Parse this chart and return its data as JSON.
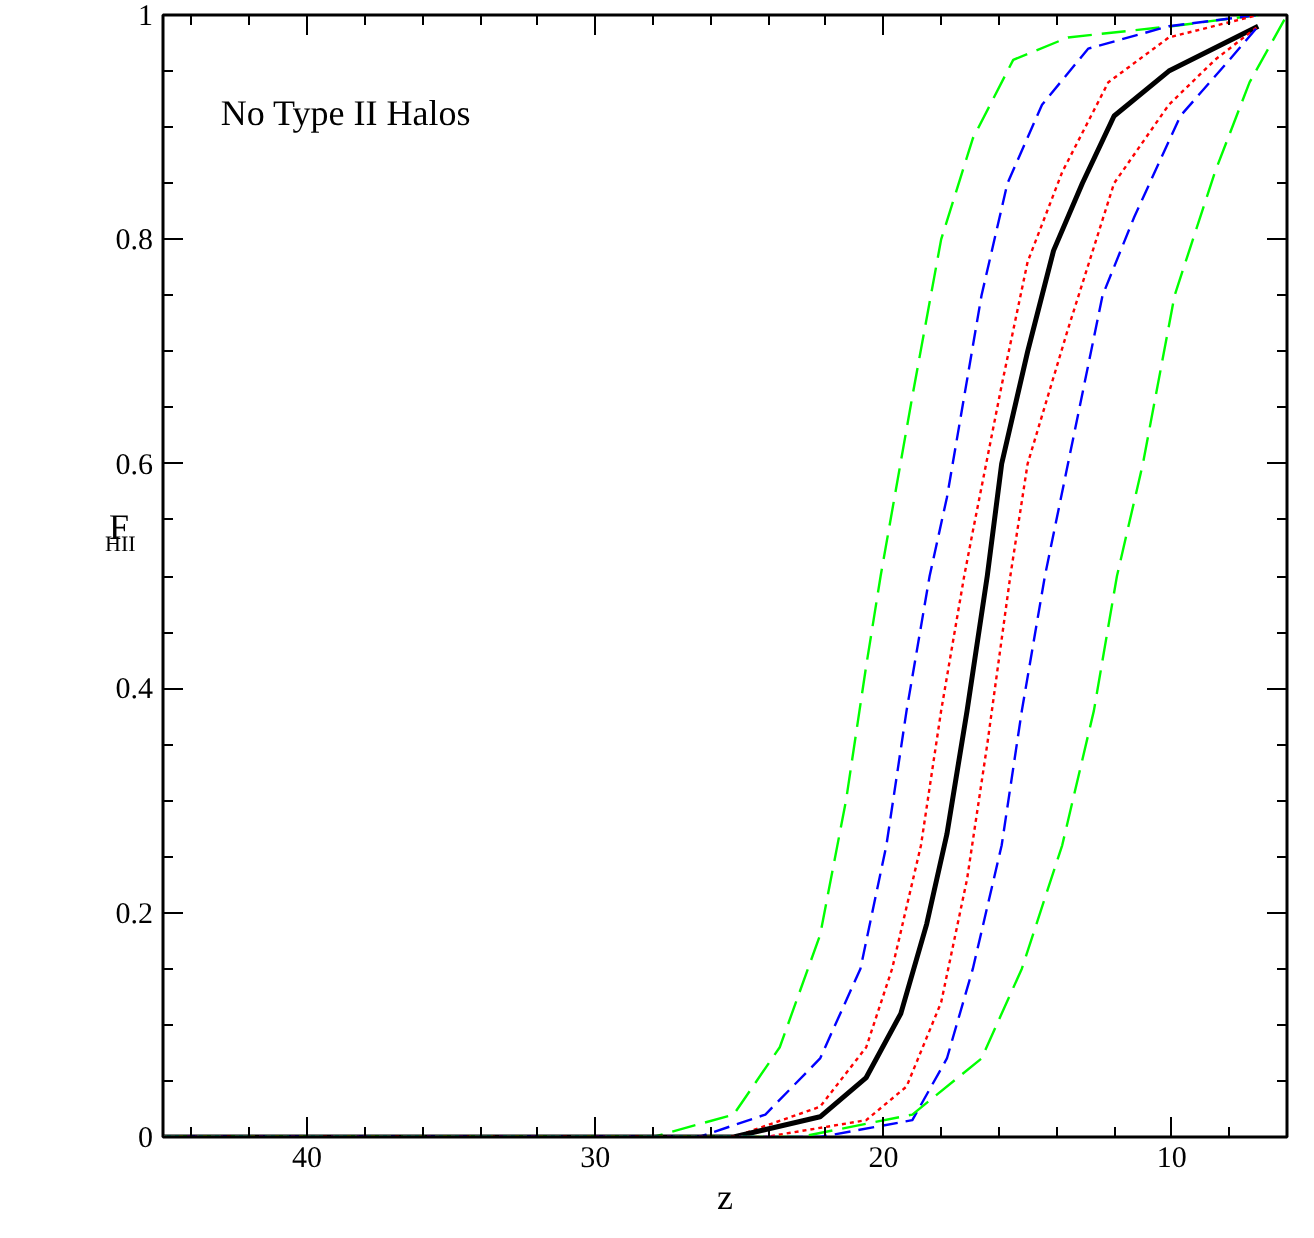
{
  "chart_data": {
    "type": "line",
    "xlabel": "z",
    "ylabel": "F$_{HII}$",
    "annotations": [
      "No Type II Halos"
    ],
    "xlim": [
      45,
      6
    ],
    "ylim": [
      0,
      1
    ],
    "xticks": [
      10,
      20,
      30,
      40
    ],
    "yticks": [
      0,
      0.2,
      0.4,
      0.6,
      0.8,
      1
    ],
    "marker": "none",
    "series": [
      {
        "color": "#00ff00",
        "line_style": "dashed",
        "x": [
          45,
          28.0,
          25.2,
          23.6,
          22.2,
          21.3,
          20.6,
          20.1,
          19.0,
          18.0,
          16.9,
          15.5,
          13.6,
          10.0,
          7.0
        ],
        "values": [
          0,
          0,
          0.02,
          0.08,
          0.18,
          0.3,
          0.42,
          0.5,
          0.66,
          0.8,
          0.89,
          0.96,
          0.98,
          0.99,
          1.0
        ]
      },
      {
        "color": "#0000ff",
        "line_style": "dashed",
        "x": [
          45,
          26.4,
          24.1,
          22.2,
          20.8,
          19.9,
          19.2,
          18.4,
          17.8,
          16.6,
          15.7,
          14.5,
          12.9,
          10.1,
          7.0
        ],
        "values": [
          0,
          0,
          0.02,
          0.07,
          0.15,
          0.26,
          0.38,
          0.5,
          0.57,
          0.75,
          0.85,
          0.92,
          0.97,
          0.99,
          1.0
        ]
      },
      {
        "color": "#ff0000",
        "line_style": "dotted",
        "x": [
          45,
          25.2,
          22.2,
          20.6,
          19.7,
          18.7,
          18.0,
          17.2,
          16.9,
          15.9,
          15.0,
          13.8,
          12.2,
          10.1,
          7.0
        ],
        "values": [
          0,
          0,
          0.027,
          0.08,
          0.15,
          0.26,
          0.38,
          0.5,
          0.54,
          0.67,
          0.78,
          0.86,
          0.94,
          0.98,
          1.0
        ]
      },
      {
        "color": "#000000",
        "line_style": "solid",
        "x": [
          45,
          25.2,
          22.2,
          20.6,
          19.4,
          18.5,
          17.8,
          17.1,
          16.4,
          15.9,
          15.0,
          14.1,
          13.1,
          12.0,
          10.1,
          7.0
        ],
        "values": [
          0,
          0,
          0.018,
          0.053,
          0.11,
          0.19,
          0.27,
          0.38,
          0.5,
          0.6,
          0.7,
          0.79,
          0.85,
          0.91,
          0.95,
          0.99
        ]
      },
      {
        "color": "#ff0000",
        "line_style": "dotted",
        "x": [
          45,
          24.1,
          20.6,
          19.2,
          18.0,
          17.1,
          16.4,
          15.6,
          15.0,
          13.6,
          12.0,
          10.1,
          8.5,
          7.0
        ],
        "values": [
          0,
          0,
          0.015,
          0.045,
          0.12,
          0.23,
          0.35,
          0.5,
          0.6,
          0.72,
          0.85,
          0.92,
          0.96,
          0.99
        ]
      },
      {
        "color": "#0000ff",
        "line_style": "dashed",
        "x": [
          45,
          22.2,
          19.0,
          17.8,
          16.9,
          15.9,
          15.2,
          14.4,
          13.6,
          12.4,
          11.3,
          9.7,
          8.0,
          7.0
        ],
        "values": [
          0,
          0,
          0.015,
          0.07,
          0.15,
          0.26,
          0.38,
          0.5,
          0.6,
          0.75,
          0.82,
          0.91,
          0.96,
          0.99
        ]
      },
      {
        "color": "#00ff00",
        "line_style": "dashed",
        "x": [
          45,
          22.9,
          19.0,
          16.6,
          15.2,
          13.8,
          12.7,
          11.9,
          11.0,
          9.9,
          8.5,
          7.3,
          6.0
        ],
        "values": [
          0,
          0,
          0.02,
          0.07,
          0.15,
          0.26,
          0.38,
          0.5,
          0.6,
          0.75,
          0.86,
          0.94,
          1.0
        ]
      }
    ]
  }
}
